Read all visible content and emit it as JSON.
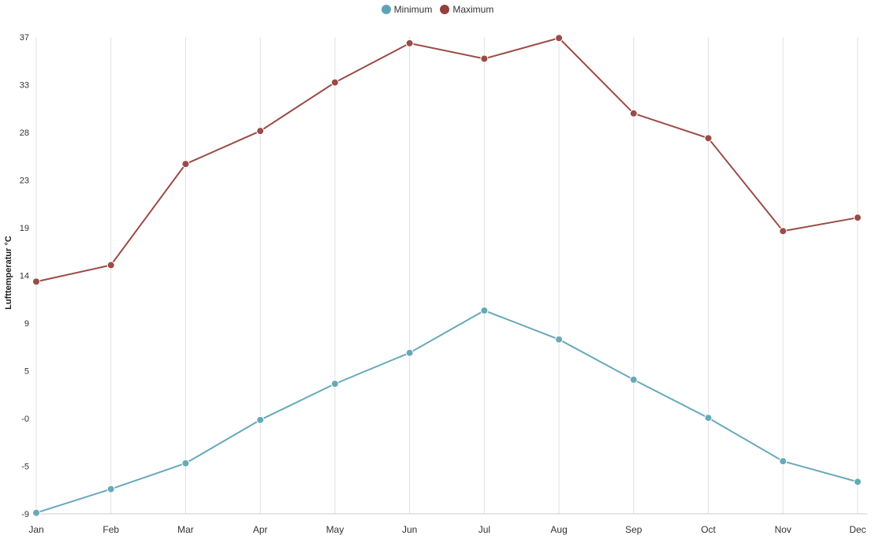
{
  "chart_data": {
    "type": "line",
    "title": "",
    "xlabel": "",
    "ylabel": "Lufttemperatur °C",
    "categories": [
      "Jan",
      "Feb",
      "Mar",
      "Apr",
      "May",
      "Jun",
      "Jul",
      "Aug",
      "Sep",
      "Oct",
      "Nov",
      "Dec"
    ],
    "y_ticks": [
      "-9",
      "-5",
      "-0",
      "5",
      "9",
      "14",
      "19",
      "23",
      "28",
      "33",
      "37"
    ],
    "ylim": [
      -9.1,
      37.1
    ],
    "grid": "vertical",
    "legend_position": "top-center",
    "series": [
      {
        "name": "Minimum",
        "color": "#67a9bb",
        "values": [
          -9.0,
          -6.7,
          -4.2,
          0.0,
          3.5,
          6.5,
          10.6,
          7.8,
          3.9,
          0.2,
          -4.0,
          -6.0
        ]
      },
      {
        "name": "Maximum",
        "color": "#9b4b46",
        "values": [
          13.4,
          15.0,
          24.8,
          28.0,
          32.7,
          36.5,
          35.0,
          37.0,
          29.7,
          27.3,
          18.3,
          19.6
        ]
      }
    ]
  }
}
